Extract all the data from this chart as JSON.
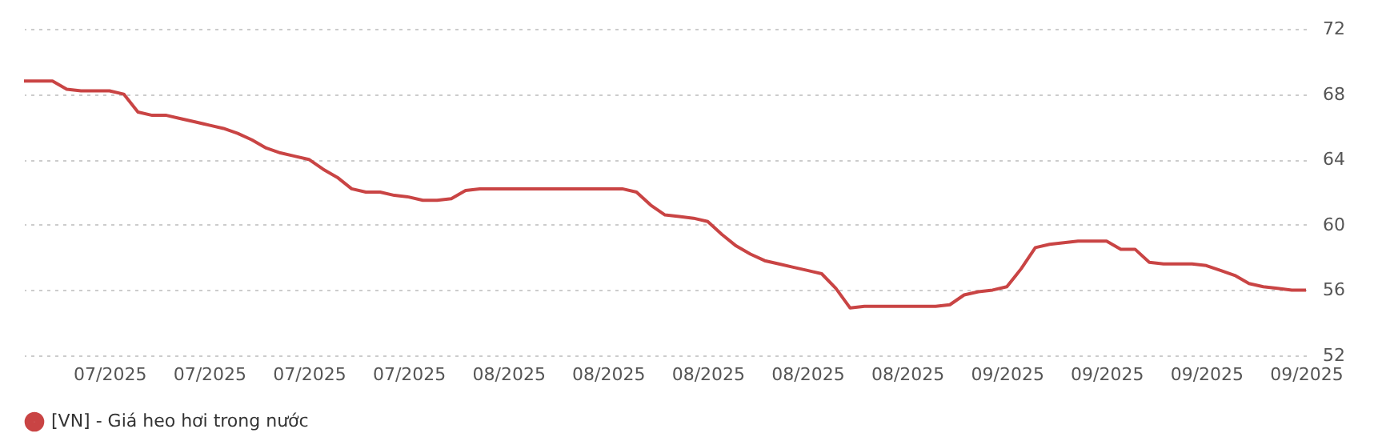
{
  "chart_data": {
    "type": "line",
    "categories": [
      null,
      null,
      null,
      null,
      null,
      null,
      "07/2025",
      null,
      null,
      null,
      null,
      null,
      null,
      "07/2025",
      null,
      null,
      null,
      null,
      null,
      null,
      "07/2025",
      null,
      null,
      null,
      null,
      null,
      null,
      "07/2025",
      null,
      null,
      null,
      null,
      null,
      null,
      "08/2025",
      null,
      null,
      null,
      null,
      null,
      null,
      "08/2025",
      null,
      null,
      null,
      null,
      null,
      null,
      "08/2025",
      null,
      null,
      null,
      null,
      null,
      null,
      "08/2025",
      null,
      null,
      null,
      null,
      null,
      null,
      "08/2025",
      null,
      null,
      null,
      null,
      null,
      null,
      "09/2025",
      null,
      null,
      null,
      null,
      null,
      null,
      "09/2025",
      null,
      null,
      null,
      null,
      null,
      null,
      "09/2025",
      null,
      null,
      null,
      null,
      null,
      null,
      "09/2025"
    ],
    "series": [
      {
        "name": "[VN] - Giá heo hơi trong nước",
        "color": "#c94444",
        "values": [
          68.8,
          68.8,
          68.8,
          68.3,
          68.2,
          68.2,
          68.2,
          68.0,
          66.9,
          66.7,
          66.7,
          66.5,
          66.3,
          66.1,
          65.9,
          65.6,
          65.2,
          64.7,
          64.4,
          64.2,
          64.0,
          63.4,
          62.9,
          62.2,
          62.0,
          62.0,
          61.8,
          61.7,
          61.5,
          61.5,
          61.6,
          62.1,
          62.2,
          62.2,
          62.2,
          62.2,
          62.2,
          62.2,
          62.2,
          62.2,
          62.2,
          62.2,
          62.2,
          62.0,
          61.2,
          60.6,
          60.5,
          60.4,
          60.2,
          59.4,
          58.7,
          58.2,
          57.8,
          57.6,
          57.4,
          57.2,
          57.0,
          56.1,
          54.9,
          55.0,
          55.0,
          55.0,
          55.0,
          55.0,
          55.0,
          55.1,
          55.7,
          55.9,
          56.0,
          56.2,
          57.3,
          58.6,
          58.8,
          58.9,
          59.0,
          59.0,
          59.0,
          58.5,
          58.5,
          57.7,
          57.6,
          57.6,
          57.6,
          57.5,
          57.2,
          56.9,
          56.4,
          56.2,
          56.1,
          56.0,
          56.0
        ]
      }
    ],
    "ylim": [
      52,
      72
    ],
    "yticks": [
      52,
      56,
      60,
      64,
      68,
      72
    ],
    "grid": "y",
    "legend": "bottom",
    "marker": "none",
    "line_style": "solid"
  }
}
